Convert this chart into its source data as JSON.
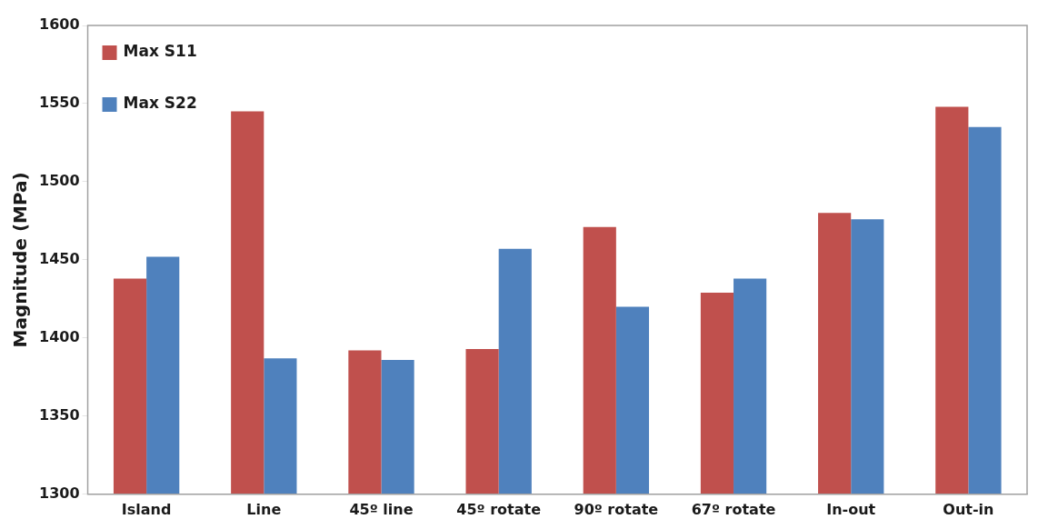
{
  "chart_data": {
    "type": "bar",
    "ylabel": "Magnitude (MPa)",
    "categories": [
      "Island",
      "Line",
      "45º line",
      "45º rotate",
      "90º rotate",
      "67º rotate",
      "In-out",
      "Out-in"
    ],
    "series": [
      {
        "name": "Max S11",
        "color": "#c0504d",
        "values": [
          1438,
          1545,
          1392,
          1393,
          1471,
          1429,
          1480,
          1548
        ]
      },
      {
        "name": "Max S22",
        "color": "#4f81bd",
        "values": [
          1452,
          1387,
          1386,
          1457,
          1420,
          1438,
          1476,
          1535
        ]
      }
    ],
    "ylim": [
      1300,
      1600
    ],
    "yticks": [
      1300,
      1350,
      1400,
      1450,
      1500,
      1550,
      1600
    ],
    "legend": "top left"
  }
}
